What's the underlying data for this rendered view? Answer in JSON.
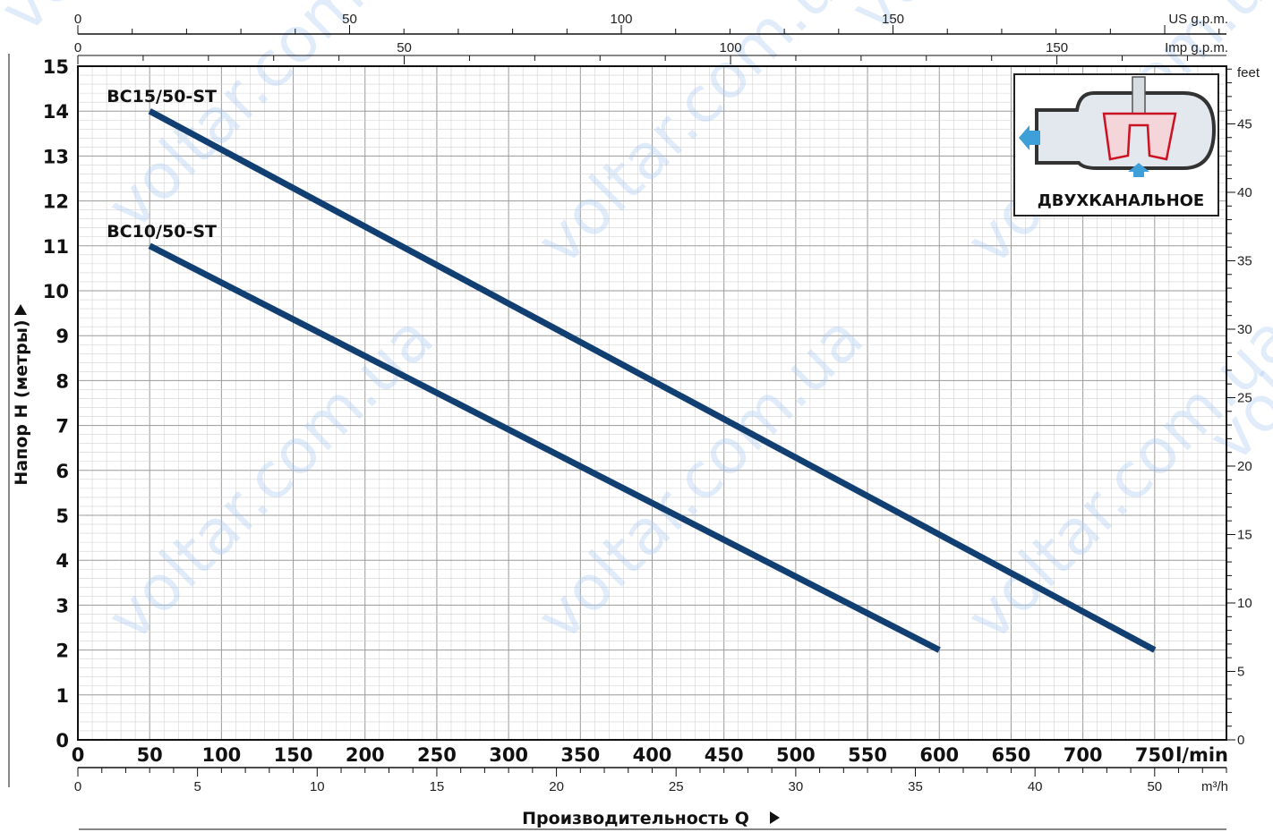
{
  "chart_data": {
    "type": "line",
    "title": "",
    "ylabel": "Напор H (метры)",
    "xlabel": "Производительность Q",
    "x_unit": "l/min",
    "ylim": [
      0,
      15
    ],
    "xlim": [
      0,
      800
    ],
    "series": [
      {
        "name": "BC15/50-ST",
        "x": [
          50,
          750
        ],
        "y": [
          14,
          2
        ]
      },
      {
        "name": "BC10/50-ST",
        "x": [
          50,
          600
        ],
        "y": [
          11,
          2
        ]
      }
    ],
    "y_ticks": [
      0,
      1,
      2,
      3,
      4,
      5,
      6,
      7,
      8,
      9,
      10,
      11,
      12,
      13,
      14,
      15
    ],
    "x_ticks_lmin": [
      0,
      50,
      100,
      150,
      200,
      250,
      300,
      350,
      400,
      450,
      500,
      550,
      600,
      650,
      700,
      750
    ],
    "secondary_axes": {
      "us_gpm": {
        "label": "US g.p.m.",
        "ticks": [
          "0",
          "50",
          "100",
          "150"
        ]
      },
      "imp_gpm": {
        "label": "Imp g.p.m.",
        "ticks": [
          "0",
          "50",
          "100",
          "150"
        ]
      },
      "m3h": {
        "label": "m³/h",
        "ticks": [
          "0",
          "5",
          "10",
          "15",
          "20",
          "25",
          "30",
          "35",
          "40",
          "50"
        ]
      },
      "feet": {
        "label": "feet",
        "ticks": [
          "0",
          "5",
          "10",
          "15",
          "20",
          "25",
          "30",
          "35",
          "40",
          "45"
        ]
      }
    },
    "grid": true,
    "line_color": "#123f72"
  },
  "inset": {
    "caption": "ДВУХКАНАЛЬНОЕ"
  },
  "watermark": {
    "text": "voltar.com.ua"
  }
}
